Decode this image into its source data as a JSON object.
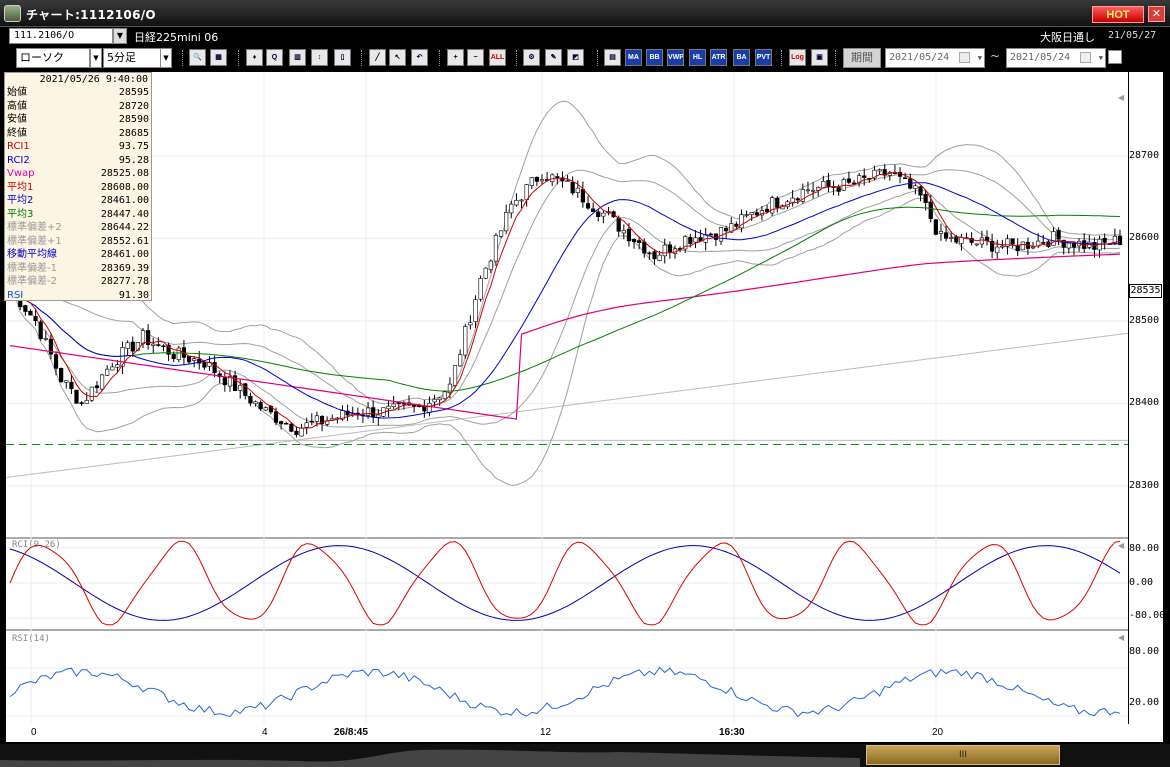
{
  "window": {
    "title": "チャート:1112106/O",
    "hot_label": "HOT",
    "close_label": "✕"
  },
  "symbol_bar": {
    "symbol_code": "111.2106/O",
    "symbol_name": "日経225mini 06",
    "market_label": "大阪日通し",
    "market_date": "21/05/27"
  },
  "toolbar": {
    "chart_type": "ローソク",
    "interval": "5分足",
    "period_label": "期間",
    "date_from": "2021/05/24",
    "date_to": "2021/05/24",
    "tilde": "~",
    "icons": [
      {
        "name": "zoom-icon",
        "text": "🔍"
      },
      {
        "name": "layout-icon",
        "text": "▦"
      },
      {
        "name": "candle-tool-icon",
        "text": "♦"
      },
      {
        "name": "search-symbol-icon",
        "text": "Q"
      },
      {
        "name": "compare-icon",
        "text": "▥"
      },
      {
        "name": "signal-icon",
        "text": "↕"
      },
      {
        "name": "lock-icon",
        "text": "▯"
      },
      {
        "name": "trendline-icon",
        "text": "╱"
      },
      {
        "name": "cursor-icon",
        "text": "↖"
      },
      {
        "name": "undo-icon",
        "text": "↶"
      },
      {
        "name": "zoom-in-icon",
        "text": "+"
      },
      {
        "name": "zoom-out-icon",
        "text": "−"
      },
      {
        "name": "all-icon",
        "text": "ALL"
      },
      {
        "name": "settings-icon",
        "text": "⚙"
      },
      {
        "name": "tools-icon",
        "text": "✎"
      },
      {
        "name": "color-icon",
        "text": "◩"
      },
      {
        "name": "grid-icon",
        "text": "▤"
      },
      {
        "name": "ma-icon",
        "text": "MA"
      },
      {
        "name": "bb-icon",
        "text": "BB"
      },
      {
        "name": "vwap-icon",
        "text": "VWP"
      },
      {
        "name": "hl-icon",
        "text": "HL"
      },
      {
        "name": "atr-icon",
        "text": "ATR"
      },
      {
        "name": "ba-icon",
        "text": "BA"
      },
      {
        "name": "pvt-icon",
        "text": "PVT"
      },
      {
        "name": "log-icon",
        "text": "Log"
      },
      {
        "name": "export-icon",
        "text": "▣"
      }
    ]
  },
  "info_panel": {
    "datetime": "2021/05/26 9:40:00",
    "rows": [
      {
        "key": "始値",
        "value": "28595",
        "color": "#000000"
      },
      {
        "key": "高値",
        "value": "28720",
        "color": "#000000"
      },
      {
        "key": "安値",
        "value": "28590",
        "color": "#000000"
      },
      {
        "key": "終値",
        "value": "28685",
        "color": "#000000"
      },
      {
        "key": "RCI1",
        "value": "93.75",
        "color": "#cc0000"
      },
      {
        "key": "RCI2",
        "value": "95.28",
        "color": "#0000cc"
      },
      {
        "key": "Vwap",
        "value": "28525.08",
        "color": "#e000a0"
      },
      {
        "key": "平均1",
        "value": "28608.00",
        "color": "#cc0000"
      },
      {
        "key": "平均2",
        "value": "28461.00",
        "color": "#0000cc"
      },
      {
        "key": "平均3",
        "value": "28447.40",
        "color": "#008000"
      },
      {
        "key": "標準偏差+2",
        "value": "28644.22",
        "color": "#999999"
      },
      {
        "key": "標準偏差+1",
        "value": "28552.61",
        "color": "#999999"
      },
      {
        "key": "移動平均線",
        "value": "28461.00",
        "color": "#0000cc"
      },
      {
        "key": "標準偏差-1",
        "value": "28369.39",
        "color": "#999999"
      },
      {
        "key": "標準偏差-2",
        "value": "28277.78",
        "color": "#999999"
      },
      {
        "key": "RSI",
        "value": "91.30",
        "color": "#0055cc"
      }
    ]
  },
  "price_axis": {
    "labels": [
      "28700",
      "28600",
      "28500",
      "28400",
      "28300"
    ],
    "last_price": "28535"
  },
  "rci_panel": {
    "label": "RCI(9,26)",
    "axis": [
      "80.00",
      "0.00",
      "-80.00"
    ]
  },
  "rsi_panel": {
    "label": "RSI(14)",
    "axis": [
      "80.00",
      "20.00"
    ]
  },
  "time_axis": [
    {
      "text": "0",
      "bold": false
    },
    {
      "text": "4",
      "bold": false
    },
    {
      "text": "26/8:45",
      "bold": true
    },
    {
      "text": "12",
      "bold": false
    },
    {
      "text": "16:30",
      "bold": true
    },
    {
      "text": "20",
      "bold": false
    }
  ],
  "scrollbar": {
    "thumb_label": "III"
  },
  "colors": {
    "rci_fast": "#dd0000",
    "rci_slow": "#0000aa",
    "rsi": "#2266dd",
    "ma_fast": "#cc0000",
    "ma_mid": "#0000cc",
    "ma_slow": "#008000",
    "vwap": "#e0007a",
    "band": "#a0a0a0",
    "support_line": "#009900"
  },
  "chart_data": {
    "type": "candlestick",
    "y_range": [
      28250,
      28780
    ],
    "price_ticks": [
      28300,
      28400,
      28500,
      28600,
      28700
    ],
    "reference_level": 28350,
    "last_price": 28535,
    "bar_count": 218,
    "anchor_closes": [
      [
        0,
        28540
      ],
      [
        5,
        28500
      ],
      [
        10,
        28430
      ],
      [
        14,
        28400
      ],
      [
        20,
        28450
      ],
      [
        26,
        28480
      ],
      [
        32,
        28460
      ],
      [
        38,
        28450
      ],
      [
        44,
        28420
      ],
      [
        50,
        28390
      ],
      [
        56,
        28370
      ],
      [
        62,
        28380
      ],
      [
        68,
        28390
      ],
      [
        74,
        28390
      ],
      [
        80,
        28395
      ],
      [
        86,
        28420
      ],
      [
        92,
        28550
      ],
      [
        98,
        28640
      ],
      [
        104,
        28680
      ],
      [
        110,
        28660
      ],
      [
        116,
        28630
      ],
      [
        120,
        28610
      ],
      [
        126,
        28580
      ],
      [
        132,
        28600
      ],
      [
        140,
        28610
      ],
      [
        148,
        28640
      ],
      [
        156,
        28660
      ],
      [
        164,
        28665
      ],
      [
        172,
        28680
      ],
      [
        178,
        28650
      ],
      [
        182,
        28600
      ],
      [
        188,
        28595
      ],
      [
        196,
        28590
      ],
      [
        204,
        28600
      ],
      [
        212,
        28590
      ],
      [
        218,
        28600
      ]
    ]
  }
}
